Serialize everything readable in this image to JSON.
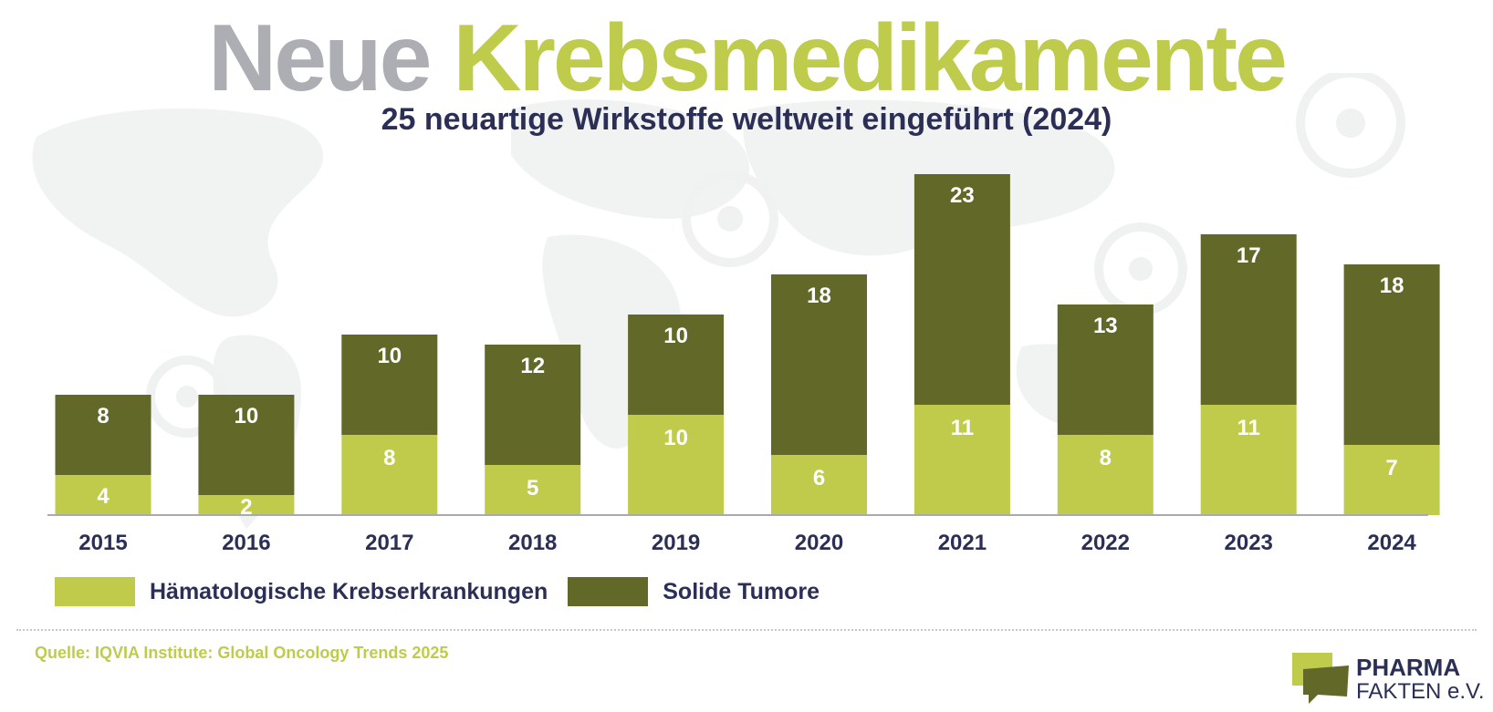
{
  "header": {
    "title_word1": "Neue",
    "title_word2": "Krebsmedikamente",
    "subtitle": "25 neuartige Wirkstoffe weltweit eingeführt (2024)"
  },
  "chart_data": {
    "type": "bar",
    "stacked": true,
    "categories": [
      "2015",
      "2016",
      "2017",
      "2018",
      "2019",
      "2020",
      "2021",
      "2022",
      "2023",
      "2024"
    ],
    "series": [
      {
        "name": "Hämatologische Krebserkrankungen",
        "color": "#c0cb4c",
        "values": [
          4,
          2,
          8,
          5,
          10,
          6,
          11,
          8,
          11,
          7
        ]
      },
      {
        "name": "Solide Tumore",
        "color": "#616828",
        "values": [
          8,
          10,
          10,
          12,
          10,
          18,
          23,
          13,
          17,
          18
        ]
      }
    ],
    "ylim": [
      0,
      34
    ],
    "grid": false,
    "data_labels": true,
    "legend_position": "bottom-left"
  },
  "legend": {
    "items": [
      {
        "label": "Hämatologische Krebserkrankungen",
        "color": "#c0cb4c"
      },
      {
        "label": "Solide Tumore",
        "color": "#616828"
      }
    ]
  },
  "footer": {
    "source": "Quelle: IQVIA Institute: Global Oncology Trends 2025",
    "logo_line1": "PHARMA",
    "logo_line2": "FAKTEN e.V."
  },
  "colors": {
    "title_grey": "#adaeb3",
    "accent_green": "#bfcb4b",
    "dark_olive": "#616828",
    "navy": "#2b2f55"
  }
}
